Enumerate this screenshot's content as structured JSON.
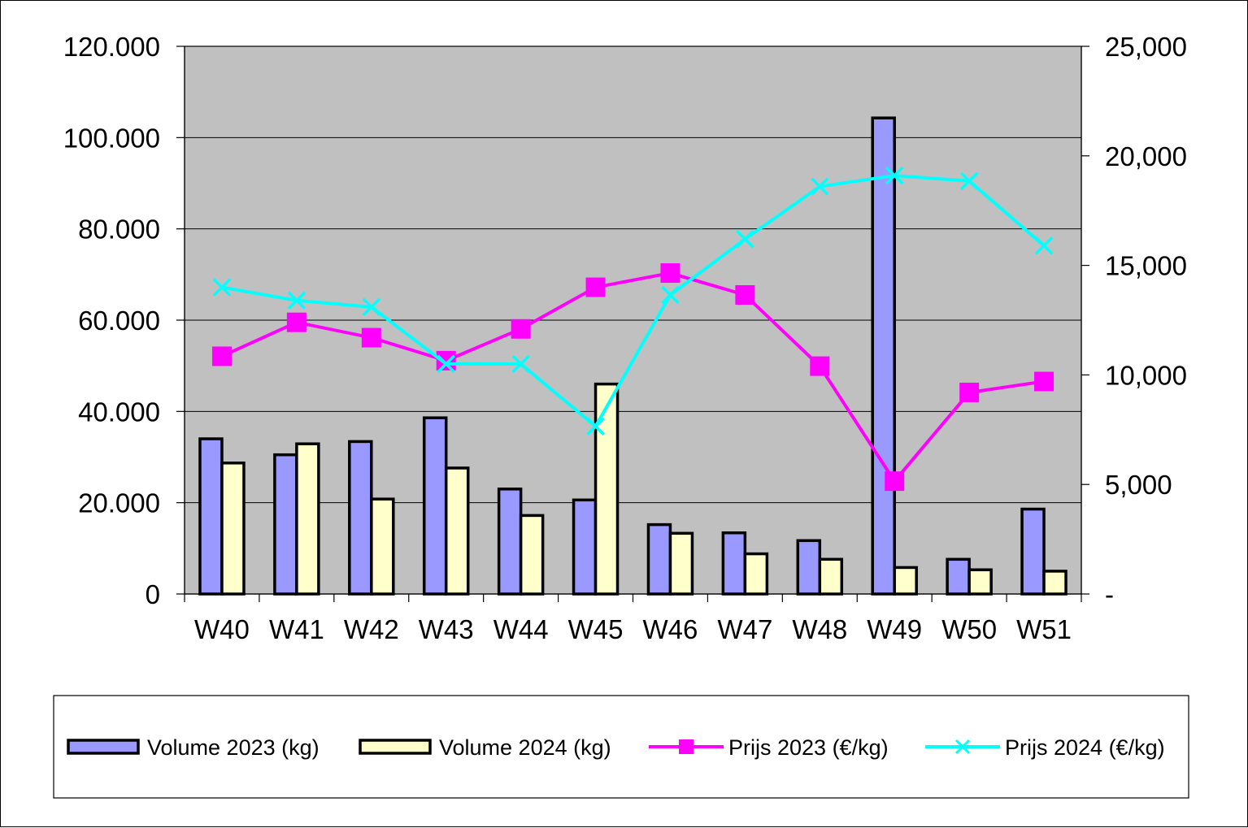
{
  "chart_data": {
    "type": "bar",
    "categories": [
      "W40",
      "W41",
      "W42",
      "W43",
      "W44",
      "W45",
      "W46",
      "W47",
      "W48",
      "W49",
      "W50",
      "W51"
    ],
    "series": [
      {
        "name": "Volume 2023 (kg)",
        "kind": "bar",
        "axis": "left",
        "color": "#9999FF",
        "values": [
          34000,
          30500,
          33400,
          38600,
          23000,
          20600,
          15200,
          13400,
          11700,
          104300,
          7600,
          18600
        ]
      },
      {
        "name": "Volume 2024 (kg)",
        "kind": "bar",
        "axis": "left",
        "color": "#FFFFCC",
        "values": [
          28700,
          32900,
          20800,
          27600,
          17200,
          46000,
          13300,
          8800,
          7600,
          5800,
          5300,
          5000
        ]
      },
      {
        "name": "Prijs 2023 (€/kg)",
        "kind": "line",
        "marker": "square",
        "axis": "right",
        "color": "#FF00FF",
        "values": [
          10.85,
          12.4,
          11.7,
          10.65,
          12.1,
          14.0,
          14.65,
          13.65,
          10.4,
          5.15,
          9.2,
          9.7
        ]
      },
      {
        "name": "Prijs 2024 (€/kg)",
        "kind": "line",
        "marker": "x",
        "axis": "right",
        "color": "#00FFFF",
        "values": [
          14.0,
          13.4,
          13.1,
          10.5,
          10.5,
          7.65,
          13.65,
          16.2,
          18.6,
          19.1,
          18.85,
          15.9
        ]
      }
    ],
    "y_left": {
      "min": 0,
      "max": 120000,
      "ticks": [
        "0",
        "20.000",
        "40.000",
        "60.000",
        "80.000",
        "100.000",
        "120.000"
      ]
    },
    "y_right": {
      "min": 0,
      "max": 25,
      "ticks": [
        "-",
        "5,000",
        "10,000",
        "15,000",
        "20,000",
        "25,000"
      ]
    },
    "title": "",
    "xlabel": "",
    "ylabel": "",
    "plot_background": "#C0C0C0",
    "grid": true,
    "legend_position": "bottom"
  }
}
